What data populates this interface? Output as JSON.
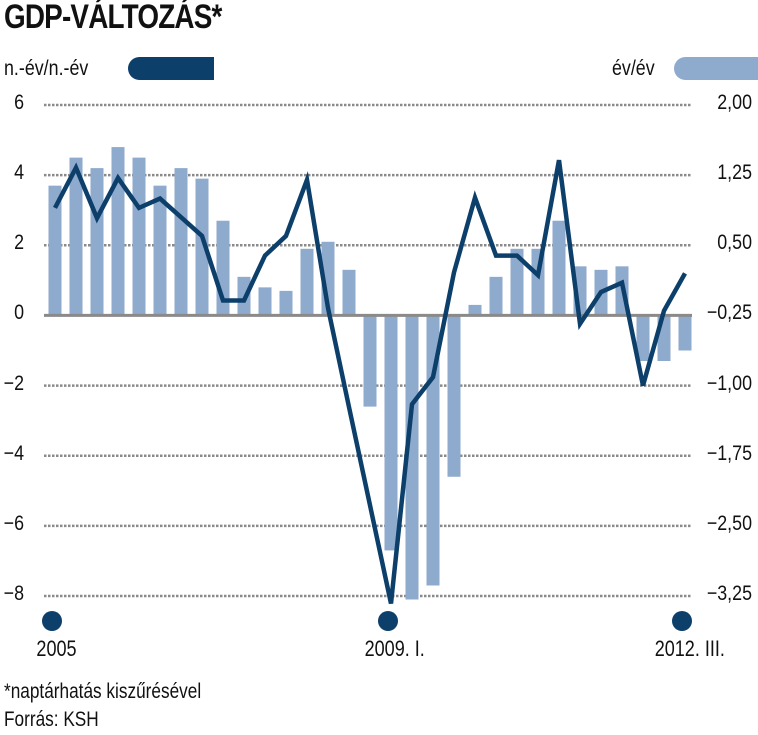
{
  "title": "GDP-VÁLTOZÁS*",
  "legend": {
    "line_label": "n.-év/n.-év",
    "bar_label": "év/év"
  },
  "colors": {
    "line": "#0d3f6b",
    "bar": "#8eaacd",
    "grid": "#8a8a8a",
    "marker": "#0d3f6b"
  },
  "footnote": "*naptárhatás kiszűrésével",
  "source": "Forrás: KSH",
  "chart_data": {
    "type": "bar+line",
    "title": "GDP-VÁLTOZÁS*",
    "x_start": "2005. I.",
    "x_end": "2012. III.",
    "x_tick_labels": [
      {
        "index": 0,
        "label": "2005"
      },
      {
        "index": 16,
        "label": "2009. I."
      },
      {
        "index": 30,
        "label": "2012. III."
      }
    ],
    "left_axis": {
      "ticks": [
        "6",
        "4",
        "2",
        "0",
        "−2",
        "−4",
        "−6",
        "−8"
      ],
      "tick_values": [
        6,
        4,
        2,
        0,
        -2,
        -4,
        -6,
        -8
      ],
      "range": [
        -8,
        6
      ]
    },
    "right_axis": {
      "ticks": [
        "2,00",
        "1,25",
        "0,50",
        "−0,25",
        "−1,00",
        "−1,75",
        "−2,50",
        "−3,25"
      ],
      "tick_values": [
        2.0,
        1.25,
        0.5,
        -0.25,
        -1.0,
        -1.75,
        -2.5,
        -3.25
      ],
      "range": [
        -3.25,
        2.0
      ]
    },
    "grid": true,
    "series": [
      {
        "name": "év/év",
        "type": "bar",
        "axis": "left",
        "values": [
          3.7,
          4.5,
          4.2,
          4.8,
          4.5,
          3.7,
          4.2,
          3.9,
          2.7,
          1.1,
          0.8,
          0.7,
          1.9,
          2.1,
          1.3,
          -2.6,
          -6.7,
          -8.1,
          -7.7,
          -4.6,
          0.3,
          1.1,
          1.9,
          1.9,
          2.7,
          1.4,
          1.3,
          1.4,
          -1.3,
          -1.3,
          -1.0
        ]
      },
      {
        "name": "n.-év/n.-év",
        "type": "line",
        "axis": "right",
        "values": [
          0.9,
          1.33,
          0.79,
          1.22,
          0.9,
          1.0,
          0.8,
          0.6,
          -0.09,
          -0.09,
          0.39,
          0.6,
          1.2,
          -0.17,
          -1.23,
          -2.28,
          -3.33,
          -1.2,
          -0.91,
          0.21,
          1.01,
          0.39,
          0.39,
          0.18,
          1.41,
          -0.34,
          0.0,
          0.1,
          -1.0,
          -0.2,
          0.2
        ]
      }
    ]
  }
}
